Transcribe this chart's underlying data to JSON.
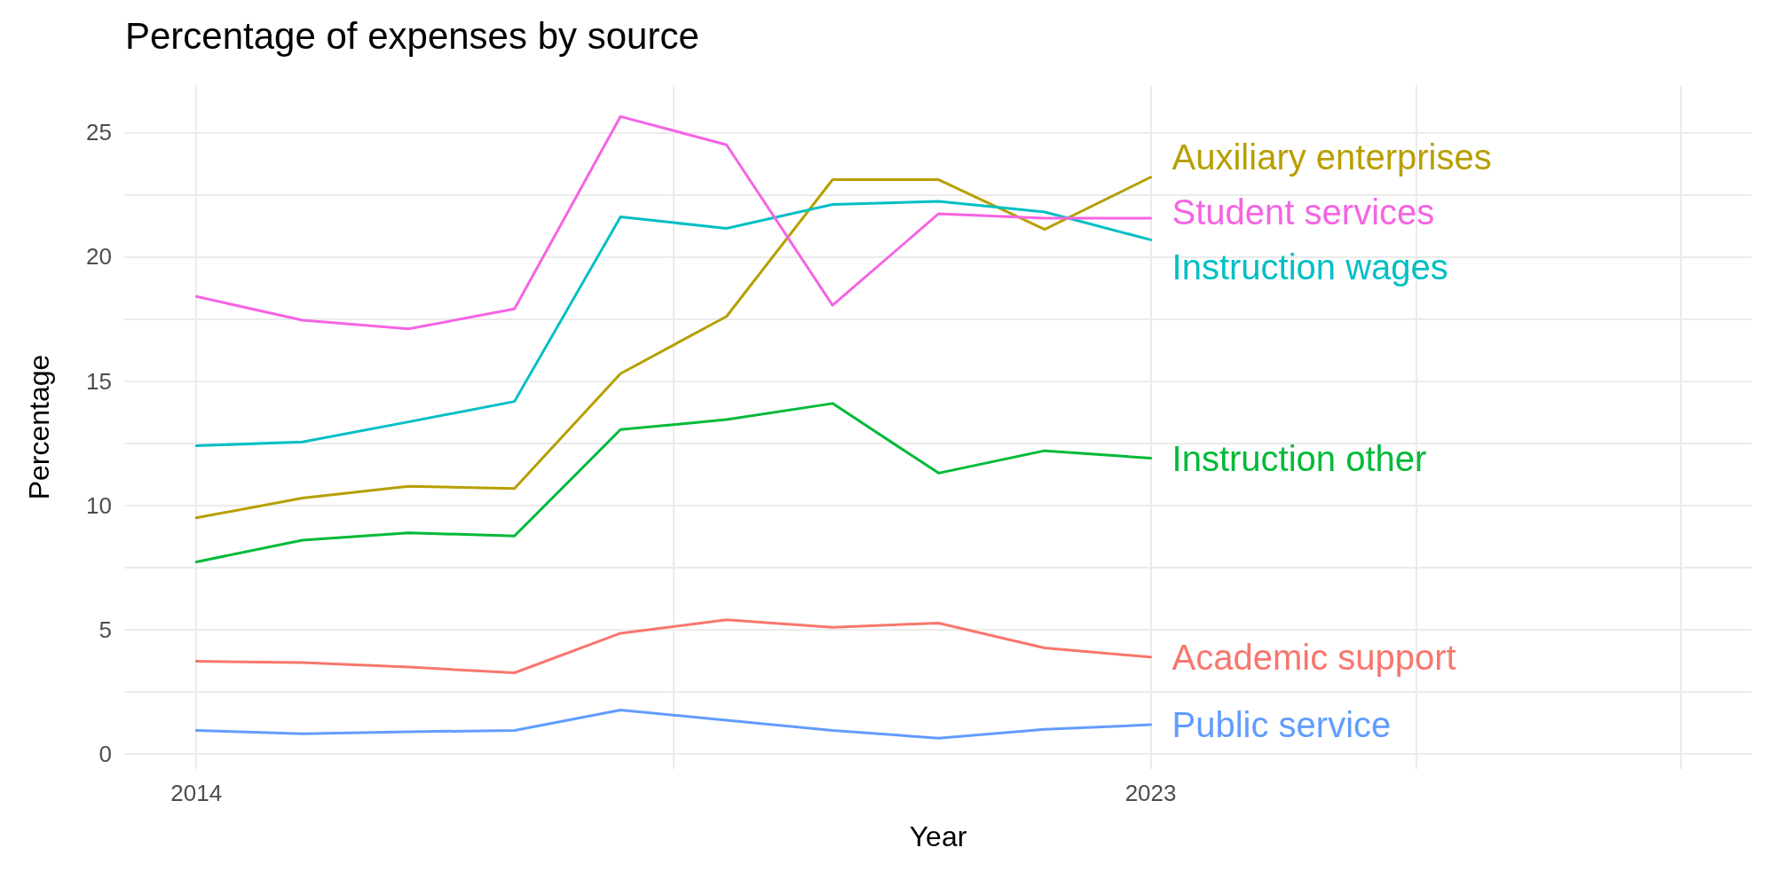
{
  "chart_data": {
    "type": "line",
    "title": "Percentage of expenses by source",
    "xlabel": "Year",
    "ylabel": "Percentage",
    "x": [
      2014,
      2015,
      2016,
      2017,
      2018,
      2019,
      2020,
      2021,
      2022,
      2023
    ],
    "series": [
      {
        "name": "Academic support",
        "color": "#f8766d",
        "values": [
          3.73,
          3.68,
          3.5,
          3.27,
          4.86,
          5.4,
          5.1,
          5.27,
          4.27,
          3.9
        ]
      },
      {
        "name": "Auxiliary enterprises",
        "color": "#b79f00",
        "values": [
          9.5,
          10.3,
          10.77,
          10.68,
          15.3,
          17.6,
          23.1,
          23.1,
          21.1,
          23.2
        ]
      },
      {
        "name": "Instruction other",
        "color": "#00ba38",
        "values": [
          7.73,
          8.6,
          8.9,
          8.77,
          13.05,
          13.45,
          14.1,
          11.3,
          12.2,
          11.9
        ]
      },
      {
        "name": "Instruction wages",
        "color": "#00bfc4",
        "values": [
          12.4,
          12.55,
          13.36,
          14.18,
          21.6,
          21.14,
          22.1,
          22.23,
          21.8,
          20.68
        ]
      },
      {
        "name": "Public service",
        "color": "#619cff",
        "values": [
          0.95,
          0.82,
          0.9,
          0.95,
          1.77,
          1.36,
          0.95,
          0.64,
          1.0,
          1.18
        ]
      },
      {
        "name": "Student services",
        "color": "#f564e3",
        "values": [
          18.4,
          17.45,
          17.1,
          17.9,
          25.64,
          24.5,
          18.05,
          21.73,
          21.55,
          21.55
        ]
      }
    ],
    "xlim": [
      2013.32,
      2028.67
    ],
    "ylim": [
      -0.6,
      26.9
    ],
    "xticks": [
      2014,
      {
        "value": 2018.5,
        "label": null
      },
      2023,
      {
        "value": 2025.5,
        "label": null
      },
      {
        "value": 2028,
        "label": null
      }
    ],
    "yticks": [
      0,
      {
        "value": 2.5,
        "label": null
      },
      5,
      {
        "value": 7.5,
        "label": null
      },
      10,
      {
        "value": 12.5,
        "label": null
      },
      15,
      {
        "value": 17.5,
        "label": null
      },
      20,
      {
        "value": 22.5,
        "label": null
      },
      25
    ],
    "grid": true,
    "legend": false,
    "marker": "none",
    "line_style": "solid"
  }
}
